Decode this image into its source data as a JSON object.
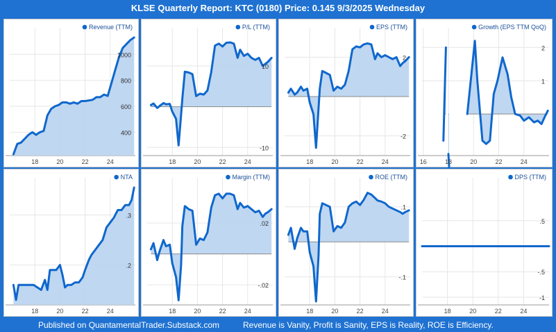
{
  "page": {
    "title": "KLSE Quarterly Report: KTC (0180)  Price: 0.145  9/3/2025 Wednesday",
    "footer_left": "Published on QuantamentalTrader.Substack.com",
    "footer_right": "Revenue is Vanity, Profit is Sanity, EPS is Reality, ROE is Efficiency."
  },
  "colors": {
    "background": "#1f72d1",
    "line": "#0f67cc",
    "fill": "#b8d3ef",
    "grid": "#e6e6e6",
    "axis": "#999999"
  },
  "chart_data": [
    {
      "id": "revenue",
      "type": "area",
      "title": "Revenue (TTM)",
      "x": [
        16.3,
        16.6,
        16.9,
        17.2,
        17.5,
        17.8,
        18.1,
        18.4,
        18.7,
        19.0,
        19.3,
        19.6,
        19.9,
        20.2,
        20.5,
        20.8,
        21.1,
        21.4,
        21.7,
        22.0,
        22.3,
        22.6,
        22.9,
        23.2,
        23.5,
        23.8,
        24.1,
        24.4,
        24.7,
        25.0,
        25.3,
        25.6,
        25.9
      ],
      "values": [
        230,
        310,
        320,
        350,
        380,
        400,
        380,
        400,
        410,
        530,
        580,
        600,
        610,
        630,
        630,
        620,
        630,
        620,
        640,
        640,
        645,
        650,
        670,
        670,
        690,
        680,
        780,
        880,
        980,
        1050,
        1080,
        1110,
        1130
      ],
      "xlim": [
        16,
        26
      ],
      "ylim": [
        220,
        1130
      ],
      "baseline": 220,
      "xticks": [
        18,
        20,
        22,
        24
      ],
      "xtick_labels": [
        "18",
        "20",
        "22",
        "24"
      ],
      "yticks": [
        400,
        600,
        800,
        1000
      ],
      "ytick_labels": [
        "400",
        "600",
        "800",
        "1000"
      ],
      "ylabel_side": "right"
    },
    {
      "id": "pe",
      "type": "area",
      "title": "P/L (TTM)",
      "x": [
        16.3,
        16.5,
        16.8,
        17.0,
        17.3,
        17.5,
        17.8,
        18.0,
        18.3,
        18.5,
        18.7,
        18.8,
        19.0,
        19.3,
        19.6,
        19.9,
        20.2,
        20.5,
        20.8,
        21.1,
        21.4,
        21.7,
        22.0,
        22.3,
        22.6,
        22.9,
        23.2,
        23.4,
        23.7,
        24.0,
        24.3,
        24.6,
        24.9,
        25.2,
        25.4,
        25.6,
        25.9
      ],
      "values": [
        0.4,
        0.8,
        -0.3,
        0.2,
        0.9,
        0.6,
        0.7,
        -1.2,
        -3.0,
        -9.5,
        -2.0,
        2.0,
        8.6,
        8.4,
        8.0,
        2.6,
        3.2,
        3.0,
        4.0,
        8.5,
        15.0,
        15.5,
        14.8,
        15.7,
        15.8,
        15.5,
        12.0,
        14.0,
        12.5,
        13.0,
        12.0,
        11.5,
        12.0,
        10.0,
        10.5,
        11.0,
        12.0
      ],
      "xlim": [
        16,
        26
      ],
      "ylim": [
        -12,
        17
      ],
      "baseline": 0,
      "xticks": [
        18,
        20,
        22,
        24
      ],
      "xtick_labels": [
        "18",
        "20",
        "22",
        "24"
      ],
      "yticks": [
        10,
        -10
      ],
      "ytick_labels": [
        "10",
        "-10"
      ],
      "ylabel_side": "right"
    },
    {
      "id": "eps",
      "type": "area",
      "title": "EPS (TTM)",
      "x": [
        16.3,
        16.5,
        16.8,
        17.0,
        17.3,
        17.5,
        17.8,
        18.0,
        18.3,
        18.5,
        18.7,
        18.8,
        19.0,
        19.3,
        19.6,
        19.9,
        20.2,
        20.5,
        20.8,
        21.1,
        21.4,
        21.7,
        22.0,
        22.3,
        22.6,
        22.9,
        23.2,
        23.4,
        23.7,
        24.0,
        24.3,
        24.6,
        24.9,
        25.2,
        25.4,
        25.6,
        25.9
      ],
      "values": [
        0.2,
        0.4,
        0.1,
        0.2,
        0.5,
        0.3,
        0.4,
        -0.3,
        -0.9,
        -2.6,
        -0.6,
        0.4,
        1.3,
        1.2,
        1.1,
        0.3,
        0.5,
        0.4,
        0.6,
        1.3,
        2.4,
        2.55,
        2.5,
        2.65,
        2.7,
        2.65,
        1.9,
        2.2,
        2.0,
        2.1,
        2.0,
        1.9,
        2.0,
        1.55,
        1.7,
        1.8,
        2.0
      ],
      "xlim": [
        16,
        26
      ],
      "ylim": [
        -3,
        3
      ],
      "baseline": 0,
      "xticks": [
        18,
        20,
        22,
        24
      ],
      "xtick_labels": [
        "18",
        "20",
        "22",
        "24"
      ],
      "yticks": [
        2,
        -2
      ],
      "ytick_labels": [
        "2",
        "-2"
      ],
      "ylabel_side": "right"
    },
    {
      "id": "growth",
      "type": "area",
      "title": "Growth (EPS TTM QoQ)",
      "segments": [
        {
          "x": [
            17.6,
            17.8
          ],
          "values": [
            -0.8,
            2.0
          ]
        },
        {
          "x": [
            18.0,
            18.05
          ],
          "values": [
            -1.2,
            -1.6
          ]
        },
        {
          "x": [
            19.5,
            20.1,
            20.3,
            20.7,
            21.0,
            21.3,
            21.6,
            21.9,
            22.3,
            22.7,
            23.0,
            23.3,
            23.7,
            24.0,
            24.4,
            24.8,
            25.1,
            25.4,
            25.7,
            25.9
          ],
          "values": [
            0.0,
            2.2,
            1.0,
            -0.8,
            -0.9,
            -0.8,
            0.6,
            1.0,
            1.7,
            1.2,
            0.5,
            0.0,
            -0.05,
            -0.2,
            -0.1,
            -0.25,
            -0.2,
            -0.3,
            -0.05,
            0.1
          ]
        }
      ],
      "xlim": [
        15.9,
        26
      ],
      "ylim": [
        -1.25,
        2.3
      ],
      "baseline": 0,
      "xticks": [
        16,
        18,
        20,
        22,
        24
      ],
      "xtick_labels": [
        "16",
        "18",
        "20",
        "22",
        "24"
      ],
      "yticks": [
        2,
        1
      ],
      "ytick_labels": [
        "2",
        "1"
      ],
      "ylabel_side": "right"
    },
    {
      "id": "nta",
      "type": "area",
      "title": "NTA",
      "x": [
        16.3,
        16.5,
        16.7,
        17.0,
        17.3,
        17.6,
        17.9,
        18.2,
        18.5,
        18.8,
        19.0,
        19.2,
        19.4,
        19.7,
        20.0,
        20.2,
        20.4,
        20.6,
        20.9,
        21.2,
        21.5,
        21.8,
        22.0,
        22.3,
        22.5,
        22.8,
        23.1,
        23.4,
        23.7,
        24.0,
        24.3,
        24.6,
        24.9,
        25.2,
        25.5,
        25.7,
        25.9
      ],
      "values": [
        0.16,
        0.13,
        0.16,
        0.16,
        0.16,
        0.16,
        0.16,
        0.155,
        0.15,
        0.17,
        0.15,
        0.19,
        0.19,
        0.19,
        0.2,
        0.18,
        0.155,
        0.16,
        0.16,
        0.165,
        0.165,
        0.175,
        0.19,
        0.21,
        0.22,
        0.23,
        0.24,
        0.25,
        0.275,
        0.285,
        0.295,
        0.31,
        0.31,
        0.32,
        0.32,
        0.33,
        0.355
      ],
      "xlim": [
        16,
        26
      ],
      "ylim": [
        0.12,
        0.355
      ],
      "baseline": 0.12,
      "xticks": [
        18,
        20,
        22,
        24
      ],
      "xtick_labels": [
        "18",
        "20",
        "22",
        "24"
      ],
      "yticks": [
        0.3,
        0.2
      ],
      "ytick_labels": [
        ".3",
        ".2"
      ],
      "ylabel_side": "right"
    },
    {
      "id": "margin",
      "type": "area",
      "title": "Margin (TTM)",
      "x": [
        16.3,
        16.5,
        16.8,
        17.0,
        17.3,
        17.5,
        17.8,
        18.0,
        18.3,
        18.5,
        18.7,
        18.8,
        19.0,
        19.3,
        19.6,
        19.9,
        20.2,
        20.5,
        20.8,
        21.1,
        21.4,
        21.7,
        22.0,
        22.3,
        22.6,
        22.9,
        23.2,
        23.4,
        23.7,
        24.0,
        24.3,
        24.6,
        24.9,
        25.2,
        25.4,
        25.6,
        25.9
      ],
      "values": [
        0.003,
        0.007,
        -0.004,
        0.002,
        0.009,
        0.005,
        0.006,
        -0.006,
        -0.015,
        -0.03,
        -0.007,
        0.018,
        0.031,
        0.029,
        0.028,
        0.006,
        0.01,
        0.009,
        0.014,
        0.03,
        0.038,
        0.039,
        0.036,
        0.039,
        0.039,
        0.038,
        0.029,
        0.033,
        0.03,
        0.031,
        0.029,
        0.027,
        0.028,
        0.024,
        0.026,
        0.027,
        0.029
      ],
      "xlim": [
        16,
        26
      ],
      "ylim": [
        -0.033,
        0.043
      ],
      "baseline": 0,
      "xticks": [
        18,
        20,
        22,
        24
      ],
      "xtick_labels": [
        "18",
        "20",
        "22",
        "24"
      ],
      "yticks": [
        0.02,
        -0.02
      ],
      "ytick_labels": [
        ".02",
        "-.02"
      ],
      "ylabel_side": "right"
    },
    {
      "id": "roe",
      "type": "area",
      "title": "ROE (TTM)",
      "x": [
        16.3,
        16.5,
        16.8,
        17.0,
        17.3,
        17.5,
        17.8,
        18.0,
        18.3,
        18.5,
        18.7,
        18.8,
        19.0,
        19.3,
        19.6,
        19.9,
        20.2,
        20.5,
        20.8,
        21.1,
        21.4,
        21.7,
        22.0,
        22.3,
        22.6,
        22.9,
        23.2,
        23.4,
        23.7,
        24.0,
        24.3,
        24.6,
        24.9,
        25.2,
        25.4,
        25.6,
        25.9
      ],
      "values": [
        0.02,
        0.04,
        -0.02,
        0.01,
        0.04,
        0.03,
        0.03,
        -0.03,
        -0.07,
        -0.17,
        -0.04,
        0.08,
        0.11,
        0.105,
        0.1,
        0.03,
        0.045,
        0.04,
        0.055,
        0.1,
        0.11,
        0.115,
        0.105,
        0.12,
        0.14,
        0.135,
        0.125,
        0.118,
        0.115,
        0.11,
        0.1,
        0.095,
        0.09,
        0.085,
        0.08,
        0.085,
        0.09
      ],
      "xlim": [
        16,
        26
      ],
      "ylim": [
        -0.18,
        0.155
      ],
      "baseline": 0,
      "xticks": [
        18,
        20,
        22,
        24
      ],
      "xtick_labels": [
        "18",
        "20",
        "22",
        "24"
      ],
      "yticks": [
        0.1,
        -0.1
      ],
      "ytick_labels": [
        ".1",
        "-.1"
      ],
      "ylabel_side": "right"
    },
    {
      "id": "dps",
      "type": "line",
      "title": "DPS (TTM)",
      "x": [
        16.0,
        26.0
      ],
      "values": [
        0,
        0
      ],
      "xlim": [
        16,
        26
      ],
      "ylim": [
        -1.15,
        1.15
      ],
      "baseline": 0,
      "xticks": [
        18,
        20,
        22,
        24
      ],
      "xtick_labels": [
        "18",
        "20",
        "22",
        "24"
      ],
      "yticks": [
        0.5,
        -0.5,
        -1
      ],
      "ytick_labels": [
        ".5",
        "-.5",
        "-1"
      ],
      "ylabel_side": "right"
    }
  ]
}
